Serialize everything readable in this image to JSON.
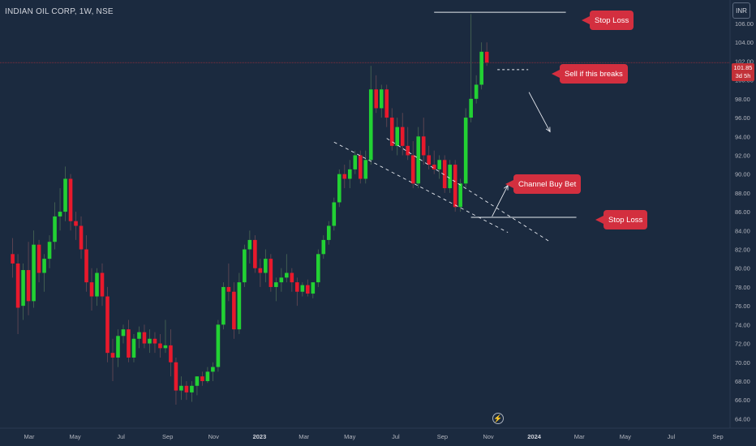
{
  "header": {
    "symbol_line": "INDIAN OIL CORP, 1W, NSE",
    "currency_button": "INR"
  },
  "last_price": {
    "price": "101.85",
    "countdown": "3d 5h"
  },
  "annotations": {
    "stop_loss_top": "Stop Loss",
    "sell_if_breaks": "Sell if this breaks",
    "channel_buy_bet": "Channel Buy Bet",
    "stop_loss_bottom": "Stop Loss"
  },
  "colors": {
    "background": "#1b2a3f",
    "up": "#22d133",
    "down": "#e8192c",
    "callout": "#d32f3f"
  },
  "icons": {
    "bottom_tool": "lightning-icon"
  },
  "chart_data": {
    "type": "candlestick",
    "y_scale": "linear",
    "ylim": [
      63.0,
      108.5
    ],
    "y_ticks": [
      "64.00",
      "66.00",
      "68.00",
      "70.00",
      "72.00",
      "74.00",
      "76.00",
      "78.00",
      "80.00",
      "82.00",
      "84.00",
      "86.00",
      "88.00",
      "90.00",
      "92.00",
      "94.00",
      "96.00",
      "98.00",
      "100.00",
      "102.00",
      "104.00",
      "106.00"
    ],
    "x_ticks": [
      "Mar",
      "May",
      "Jul",
      "Sep",
      "Nov",
      "2023",
      "Mar",
      "May",
      "Jul",
      "Sep",
      "Nov",
      "2024",
      "Mar",
      "May",
      "Jul",
      "Sep"
    ],
    "x_start": "2022-02-07",
    "interval": "1W",
    "candles": [
      {
        "o": 81.5,
        "h": 83.2,
        "l": 79.0,
        "c": 80.5
      },
      {
        "o": 80.5,
        "h": 81.5,
        "l": 73.0,
        "c": 75.8
      },
      {
        "o": 76.0,
        "h": 80.5,
        "l": 74.5,
        "c": 79.8
      },
      {
        "o": 79.8,
        "h": 82.8,
        "l": 75.0,
        "c": 76.5
      },
      {
        "o": 76.5,
        "h": 84.0,
        "l": 75.8,
        "c": 82.5
      },
      {
        "o": 82.5,
        "h": 83.0,
        "l": 78.5,
        "c": 79.5
      },
      {
        "o": 79.5,
        "h": 81.5,
        "l": 77.5,
        "c": 81.0
      },
      {
        "o": 81.0,
        "h": 83.5,
        "l": 80.0,
        "c": 82.8
      },
      {
        "o": 82.8,
        "h": 87.0,
        "l": 82.0,
        "c": 85.5
      },
      {
        "o": 85.5,
        "h": 88.5,
        "l": 84.0,
        "c": 86.0
      },
      {
        "o": 86.0,
        "h": 90.8,
        "l": 85.0,
        "c": 89.5
      },
      {
        "o": 89.5,
        "h": 90.0,
        "l": 84.0,
        "c": 85.0
      },
      {
        "o": 85.0,
        "h": 86.0,
        "l": 83.0,
        "c": 84.5
      },
      {
        "o": 84.5,
        "h": 85.5,
        "l": 81.0,
        "c": 82.0
      },
      {
        "o": 82.0,
        "h": 83.5,
        "l": 77.5,
        "c": 78.5
      },
      {
        "o": 78.5,
        "h": 80.0,
        "l": 75.5,
        "c": 77.0
      },
      {
        "o": 77.0,
        "h": 80.0,
        "l": 76.0,
        "c": 79.5
      },
      {
        "o": 79.5,
        "h": 80.5,
        "l": 76.0,
        "c": 77.0
      },
      {
        "o": 77.0,
        "h": 78.0,
        "l": 70.0,
        "c": 71.0
      },
      {
        "o": 71.0,
        "h": 72.5,
        "l": 68.0,
        "c": 70.5
      },
      {
        "o": 70.5,
        "h": 73.5,
        "l": 69.5,
        "c": 72.8
      },
      {
        "o": 72.8,
        "h": 74.0,
        "l": 72.0,
        "c": 73.5
      },
      {
        "o": 73.5,
        "h": 74.5,
        "l": 70.0,
        "c": 70.5
      },
      {
        "o": 70.5,
        "h": 73.0,
        "l": 70.0,
        "c": 72.5
      },
      {
        "o": 72.5,
        "h": 73.8,
        "l": 71.5,
        "c": 73.2
      },
      {
        "o": 73.2,
        "h": 74.0,
        "l": 71.5,
        "c": 72.0
      },
      {
        "o": 72.0,
        "h": 73.5,
        "l": 71.0,
        "c": 72.5
      },
      {
        "o": 72.5,
        "h": 73.2,
        "l": 71.0,
        "c": 72.0
      },
      {
        "o": 72.0,
        "h": 73.0,
        "l": 70.5,
        "c": 71.5
      },
      {
        "o": 71.5,
        "h": 74.5,
        "l": 71.0,
        "c": 71.8
      },
      {
        "o": 71.8,
        "h": 73.5,
        "l": 68.5,
        "c": 70.0
      },
      {
        "o": 70.0,
        "h": 70.5,
        "l": 65.5,
        "c": 67.0
      },
      {
        "o": 67.0,
        "h": 68.5,
        "l": 66.0,
        "c": 67.5
      },
      {
        "o": 67.5,
        "h": 68.0,
        "l": 66.0,
        "c": 66.8
      },
      {
        "o": 66.8,
        "h": 68.0,
        "l": 65.8,
        "c": 67.5
      },
      {
        "o": 67.5,
        "h": 68.5,
        "l": 66.5,
        "c": 68.5
      },
      {
        "o": 68.5,
        "h": 69.0,
        "l": 67.5,
        "c": 68.0
      },
      {
        "o": 68.0,
        "h": 69.5,
        "l": 67.8,
        "c": 69.0
      },
      {
        "o": 69.0,
        "h": 70.0,
        "l": 68.0,
        "c": 69.5
      },
      {
        "o": 69.5,
        "h": 74.5,
        "l": 69.0,
        "c": 74.0
      },
      {
        "o": 74.0,
        "h": 78.5,
        "l": 73.5,
        "c": 78.0
      },
      {
        "o": 78.0,
        "h": 80.5,
        "l": 76.5,
        "c": 77.5
      },
      {
        "o": 77.5,
        "h": 78.5,
        "l": 72.5,
        "c": 73.5
      },
      {
        "o": 73.5,
        "h": 79.5,
        "l": 73.0,
        "c": 78.5
      },
      {
        "o": 78.5,
        "h": 82.5,
        "l": 78.0,
        "c": 82.0
      },
      {
        "o": 82.0,
        "h": 84.0,
        "l": 80.5,
        "c": 83.0
      },
      {
        "o": 83.0,
        "h": 83.5,
        "l": 79.5,
        "c": 80.0
      },
      {
        "o": 80.0,
        "h": 81.0,
        "l": 78.0,
        "c": 79.5
      },
      {
        "o": 79.5,
        "h": 82.0,
        "l": 78.5,
        "c": 81.0
      },
      {
        "o": 81.0,
        "h": 81.5,
        "l": 77.5,
        "c": 78.0
      },
      {
        "o": 78.0,
        "h": 79.0,
        "l": 76.5,
        "c": 78.5
      },
      {
        "o": 78.5,
        "h": 80.0,
        "l": 77.5,
        "c": 79.0
      },
      {
        "o": 79.0,
        "h": 81.5,
        "l": 78.5,
        "c": 79.5
      },
      {
        "o": 79.5,
        "h": 80.0,
        "l": 77.5,
        "c": 78.5
      },
      {
        "o": 78.5,
        "h": 79.0,
        "l": 76.0,
        "c": 77.5
      },
      {
        "o": 77.5,
        "h": 78.5,
        "l": 77.0,
        "c": 78.2
      },
      {
        "o": 78.2,
        "h": 78.8,
        "l": 77.0,
        "c": 77.3
      },
      {
        "o": 77.3,
        "h": 78.5,
        "l": 76.8,
        "c": 78.5
      },
      {
        "o": 78.5,
        "h": 82.0,
        "l": 78.0,
        "c": 81.5
      },
      {
        "o": 81.5,
        "h": 83.5,
        "l": 81.0,
        "c": 83.0
      },
      {
        "o": 83.0,
        "h": 85.0,
        "l": 82.5,
        "c": 84.5
      },
      {
        "o": 84.5,
        "h": 87.5,
        "l": 84.0,
        "c": 87.0
      },
      {
        "o": 87.0,
        "h": 90.5,
        "l": 86.5,
        "c": 90.0
      },
      {
        "o": 90.0,
        "h": 91.0,
        "l": 88.5,
        "c": 89.5
      },
      {
        "o": 89.5,
        "h": 91.5,
        "l": 88.5,
        "c": 90.5
      },
      {
        "o": 90.5,
        "h": 92.5,
        "l": 90.0,
        "c": 92.0
      },
      {
        "o": 92.0,
        "h": 92.5,
        "l": 89.0,
        "c": 89.5
      },
      {
        "o": 89.5,
        "h": 92.5,
        "l": 89.0,
        "c": 91.5
      },
      {
        "o": 91.5,
        "h": 101.5,
        "l": 91.0,
        "c": 99.0
      },
      {
        "o": 99.0,
        "h": 100.5,
        "l": 96.5,
        "c": 97.0
      },
      {
        "o": 97.0,
        "h": 99.5,
        "l": 96.0,
        "c": 99.0
      },
      {
        "o": 99.0,
        "h": 99.5,
        "l": 95.0,
        "c": 96.0
      },
      {
        "o": 96.0,
        "h": 97.0,
        "l": 92.5,
        "c": 93.0
      },
      {
        "o": 93.0,
        "h": 96.0,
        "l": 92.0,
        "c": 95.0
      },
      {
        "o": 95.0,
        "h": 96.5,
        "l": 92.0,
        "c": 93.0
      },
      {
        "o": 93.0,
        "h": 95.0,
        "l": 91.5,
        "c": 92.0
      },
      {
        "o": 92.0,
        "h": 93.5,
        "l": 88.5,
        "c": 89.0
      },
      {
        "o": 89.0,
        "h": 95.0,
        "l": 88.5,
        "c": 94.0
      },
      {
        "o": 94.0,
        "h": 96.0,
        "l": 91.0,
        "c": 92.0
      },
      {
        "o": 92.0,
        "h": 93.0,
        "l": 90.5,
        "c": 91.0
      },
      {
        "o": 91.0,
        "h": 92.5,
        "l": 90.0,
        "c": 90.5
      },
      {
        "o": 90.5,
        "h": 92.0,
        "l": 89.5,
        "c": 91.5
      },
      {
        "o": 91.5,
        "h": 92.0,
        "l": 88.0,
        "c": 88.5
      },
      {
        "o": 88.5,
        "h": 91.5,
        "l": 88.0,
        "c": 91.0
      },
      {
        "o": 91.0,
        "h": 91.5,
        "l": 86.0,
        "c": 86.5
      },
      {
        "o": 86.5,
        "h": 89.5,
        "l": 86.0,
        "c": 89.0
      },
      {
        "o": 89.0,
        "h": 97.0,
        "l": 88.5,
        "c": 96.0
      },
      {
        "o": 96.0,
        "h": 107.0,
        "l": 95.5,
        "c": 98.0
      },
      {
        "o": 98.0,
        "h": 100.5,
        "l": 97.5,
        "c": 99.5
      },
      {
        "o": 99.5,
        "h": 104.0,
        "l": 99.0,
        "c": 103.0
      },
      {
        "o": 103.0,
        "h": 104.0,
        "l": 101.5,
        "c": 101.85
      }
    ]
  }
}
